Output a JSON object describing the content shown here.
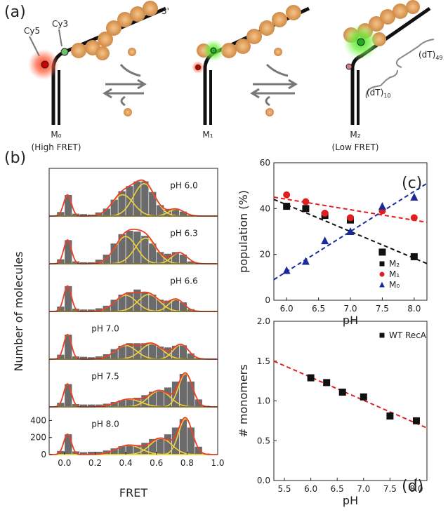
{
  "diagram": {
    "panel_label": "(a)",
    "cy5": "Cy5",
    "cy3": "Cy3",
    "end": "3'",
    "states": [
      {
        "name": "M₀",
        "note": "(High FRET)"
      },
      {
        "name": "M₁"
      },
      {
        "name": "M₂",
        "note": "(Low FRET)"
      }
    ],
    "spans": [
      {
        "text": "(dT)",
        "sub": "10"
      },
      {
        "text": "(dT)",
        "sub": "49"
      }
    ]
  },
  "chart_data": [
    {
      "type": "histogram",
      "panel_label": "(b)",
      "xlabel": "FRET",
      "ylabel": "Number of molecules",
      "bins": [
        -0.1,
        -0.05,
        0,
        0.05,
        0.1,
        0.15,
        0.2,
        0.25,
        0.3,
        0.35,
        0.4,
        0.45,
        0.5,
        0.55,
        0.6,
        0.65,
        0.7,
        0.75,
        0.8,
        0.85,
        0.9,
        0.95,
        1.0
      ],
      "xlim": [
        -0.1,
        1.0
      ],
      "xticks": [
        {
          "value": 0,
          "label": "0.0"
        },
        {
          "value": 0.2,
          "label": "0.2"
        },
        {
          "value": 0.4,
          "label": "0.4"
        },
        {
          "value": 0.6,
          "label": "0.6"
        },
        {
          "value": 0.8,
          "label": "0.8"
        },
        {
          "value": 1.0,
          "label": "1.0"
        }
      ],
      "ylim": [
        0,
        560
      ],
      "yticks": [
        0,
        200,
        400
      ],
      "bar_color": "#6b6b6b",
      "fit_color": "#f2d23c",
      "sum_color": "#e8402a",
      "panels": [
        {
          "label": "pH 6.0",
          "counts": [
            5,
            50,
            250,
            30,
            25,
            20,
            45,
            90,
            195,
            295,
            355,
            408,
            410,
            285,
            131,
            77,
            85,
            55,
            15,
            5,
            3,
            2
          ],
          "components": [
            {
              "center": 0.02,
              "height": 250,
              "sigma": 0.025
            },
            {
              "center": 0.38,
              "height": 250,
              "sigma": 0.07
            },
            {
              "center": 0.52,
              "height": 380,
              "sigma": 0.07
            },
            {
              "center": 0.73,
              "height": 80,
              "sigma": 0.05
            }
          ]
        },
        {
          "label": "pH 6.3",
          "counts": [
            5,
            55,
            280,
            30,
            20,
            20,
            50,
            110,
            240,
            350,
            390,
            380,
            330,
            240,
            140,
            120,
            140,
            110,
            30,
            8,
            3,
            2
          ],
          "components": [
            {
              "center": 0.02,
              "height": 280,
              "sigma": 0.025
            },
            {
              "center": 0.4,
              "height": 320,
              "sigma": 0.07
            },
            {
              "center": 0.53,
              "height": 300,
              "sigma": 0.07
            },
            {
              "center": 0.75,
              "height": 130,
              "sigma": 0.05
            }
          ]
        },
        {
          "label": "pH 6.6",
          "counts": [
            5,
            60,
            300,
            35,
            25,
            25,
            40,
            70,
            140,
            200,
            230,
            260,
            230,
            200,
            140,
            130,
            145,
            110,
            30,
            8,
            3,
            2
          ],
          "components": [
            {
              "center": 0.02,
              "height": 300,
              "sigma": 0.025
            },
            {
              "center": 0.4,
              "height": 190,
              "sigma": 0.07
            },
            {
              "center": 0.55,
              "height": 200,
              "sigma": 0.07
            },
            {
              "center": 0.73,
              "height": 140,
              "sigma": 0.05
            }
          ]
        },
        {
          "label": "pH 7.0",
          "counts": [
            5,
            55,
            290,
            35,
            30,
            25,
            35,
            60,
            120,
            160,
            190,
            190,
            190,
            185,
            150,
            140,
            160,
            165,
            70,
            15,
            4,
            2
          ],
          "components": [
            {
              "center": 0.02,
              "height": 290,
              "sigma": 0.025
            },
            {
              "center": 0.4,
              "height": 160,
              "sigma": 0.07
            },
            {
              "center": 0.57,
              "height": 180,
              "sigma": 0.07
            },
            {
              "center": 0.76,
              "height": 170,
              "sigma": 0.05
            }
          ]
        },
        {
          "label": "pH 7.5",
          "counts": [
            5,
            50,
            270,
            35,
            30,
            30,
            30,
            40,
            60,
            80,
            95,
            110,
            140,
            180,
            200,
            230,
            300,
            390,
            300,
            90,
            15,
            3
          ],
          "components": [
            {
              "center": 0.02,
              "height": 270,
              "sigma": 0.025
            },
            {
              "center": 0.42,
              "height": 90,
              "sigma": 0.08
            },
            {
              "center": 0.62,
              "height": 190,
              "sigma": 0.07
            },
            {
              "center": 0.79,
              "height": 390,
              "sigma": 0.045
            }
          ]
        },
        {
          "label": "pH 8.0",
          "counts": [
            5,
            45,
            240,
            40,
            30,
            35,
            35,
            50,
            75,
            100,
            115,
            115,
            140,
            185,
            200,
            240,
            320,
            420,
            320,
            95,
            15,
            3
          ],
          "components": [
            {
              "center": 0.02,
              "height": 240,
              "sigma": 0.025
            },
            {
              "center": 0.42,
              "height": 110,
              "sigma": 0.08
            },
            {
              "center": 0.63,
              "height": 190,
              "sigma": 0.07
            },
            {
              "center": 0.79,
              "height": 420,
              "sigma": 0.045
            }
          ]
        }
      ]
    },
    {
      "type": "scatter",
      "panel_label": "(c)",
      "xlabel": "pH",
      "ylabel": "population (%)",
      "xlim": [
        5.8,
        8.2
      ],
      "xticks": [
        {
          "value": 6,
          "label": "6.0"
        },
        {
          "value": 6.5,
          "label": "6.5"
        },
        {
          "value": 7,
          "label": "7.0"
        },
        {
          "value": 7.5,
          "label": "7.5"
        },
        {
          "value": 8,
          "label": "8.0"
        }
      ],
      "ylim": [
        0,
        60
      ],
      "yticks": [
        0,
        20,
        40,
        60
      ],
      "legend": "lower right",
      "x": [
        6.0,
        6.3,
        6.6,
        7.0,
        7.5,
        8.0
      ],
      "fit_x": [
        5.8,
        8.2
      ],
      "series": [
        {
          "name": "M₂",
          "color": "#111111",
          "marker": "square",
          "values": [
            41,
            40,
            37,
            35,
            21,
            19
          ],
          "fit_color": "#111111",
          "fit_values": [
            44,
            16
          ]
        },
        {
          "name": "M₁",
          "color": "#e02020",
          "marker": "circle",
          "values": [
            46,
            43,
            38,
            36,
            39,
            36
          ],
          "fit_color": "#e02020",
          "fit_values": [
            45,
            34
          ]
        },
        {
          "name": "M₀",
          "color": "#1a2a9a",
          "marker": "triangle",
          "values": [
            13,
            17,
            26,
            30,
            41,
            45
          ],
          "fit_color": "#1a2a9a",
          "fit_values": [
            9,
            51
          ]
        }
      ]
    },
    {
      "type": "scatter",
      "panel_label": "(d)",
      "xlabel": "pH",
      "ylabel": "# monomers",
      "xlim": [
        5.3,
        8.2
      ],
      "xticks": [
        {
          "value": 5.5,
          "label": "5.5"
        },
        {
          "value": 6,
          "label": "6.0"
        },
        {
          "value": 6.5,
          "label": "6.5"
        },
        {
          "value": 7,
          "label": "7.0"
        },
        {
          "value": 7.5,
          "label": "7.5"
        },
        {
          "value": 8,
          "label": "8.0"
        }
      ],
      "ylim": [
        0,
        2
      ],
      "yticks": [
        {
          "value": 0,
          "label": "0.0"
        },
        {
          "value": 0.5,
          "label": "0.5"
        },
        {
          "value": 1,
          "label": "1.0"
        },
        {
          "value": 1.5,
          "label": "1.5"
        },
        {
          "value": 2,
          "label": "2.0"
        }
      ],
      "legend": "upper right",
      "x": [
        6.0,
        6.3,
        6.6,
        7.0,
        7.5,
        8.0
      ],
      "fit_x": [
        5.3,
        8.2
      ],
      "series": [
        {
          "name": "WT RecA",
          "color": "#111111",
          "marker": "square",
          "values": [
            1.29,
            1.23,
            1.11,
            1.05,
            0.81,
            0.75
          ],
          "fit_color": "#e02020",
          "fit_values": [
            1.5,
            0.66
          ]
        }
      ]
    }
  ]
}
